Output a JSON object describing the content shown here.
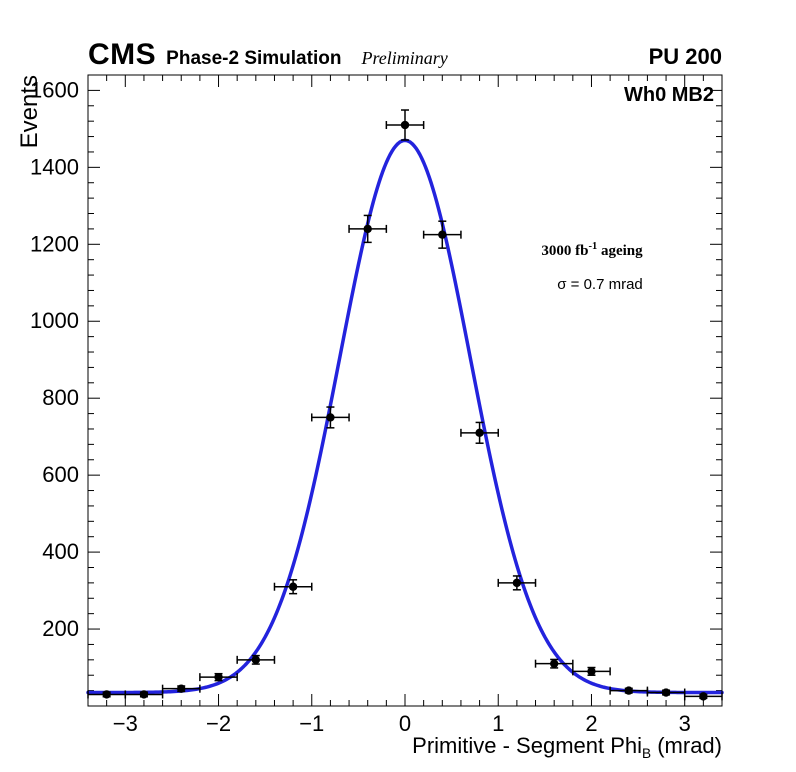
{
  "header": {
    "experiment": "CMS",
    "label": "Phase-2 Simulation",
    "sublabel": "Preliminary",
    "right_label": "PU 200"
  },
  "plot_annotations": {
    "chamber": "Wh0 MB2",
    "lumi_prefix": "3000 fb",
    "lumi_sup": "-1",
    "lumi_suffix": " ageing",
    "sigma_text": "σ = 0.7 mrad"
  },
  "chart_data": {
    "type": "scatter",
    "xlabel_main": "Primitive - Segment Phi",
    "xlabel_sub": "B",
    "xlabel_unit": " (mrad)",
    "ylabel": "Events",
    "xlim": [
      -3.4,
      3.4
    ],
    "ylim": [
      0,
      1640
    ],
    "xticks": [
      -3,
      -2,
      -1,
      0,
      1,
      2,
      3
    ],
    "yticks": [
      0,
      200,
      400,
      600,
      800,
      1000,
      1200,
      1400,
      1600
    ],
    "x_minor_step": 0.2,
    "y_minor_step": 40,
    "grid": false,
    "points": [
      {
        "x": -3.2,
        "y": 30,
        "xerr": 0.2,
        "yerr": 6
      },
      {
        "x": -2.8,
        "y": 30,
        "xerr": 0.2,
        "yerr": 6
      },
      {
        "x": -2.4,
        "y": 45,
        "xerr": 0.2,
        "yerr": 7
      },
      {
        "x": -2.0,
        "y": 75,
        "xerr": 0.2,
        "yerr": 9
      },
      {
        "x": -1.6,
        "y": 120,
        "xerr": 0.2,
        "yerr": 11
      },
      {
        "x": -1.2,
        "y": 310,
        "xerr": 0.2,
        "yerr": 18
      },
      {
        "x": -0.8,
        "y": 750,
        "xerr": 0.2,
        "yerr": 27
      },
      {
        "x": -0.4,
        "y": 1240,
        "xerr": 0.2,
        "yerr": 35
      },
      {
        "x": 0.0,
        "y": 1510,
        "xerr": 0.2,
        "yerr": 39
      },
      {
        "x": 0.4,
        "y": 1225,
        "xerr": 0.2,
        "yerr": 35
      },
      {
        "x": 0.8,
        "y": 710,
        "xerr": 0.2,
        "yerr": 27
      },
      {
        "x": 1.2,
        "y": 320,
        "xerr": 0.2,
        "yerr": 18
      },
      {
        "x": 1.6,
        "y": 110,
        "xerr": 0.2,
        "yerr": 11
      },
      {
        "x": 2.0,
        "y": 90,
        "xerr": 0.2,
        "yerr": 10
      },
      {
        "x": 2.4,
        "y": 40,
        "xerr": 0.2,
        "yerr": 6
      },
      {
        "x": 2.8,
        "y": 35,
        "xerr": 0.2,
        "yerr": 6
      },
      {
        "x": 3.2,
        "y": 25,
        "xerr": 0.2,
        "yerr": 5
      }
    ],
    "fit": {
      "type": "gaussian",
      "baseline": 35,
      "amplitude": 1435,
      "mean": 0,
      "sigma": 0.7,
      "color": "#2323dd",
      "line_width": 3.5
    },
    "marker_color": "#000000",
    "axis_color": "#000000"
  }
}
